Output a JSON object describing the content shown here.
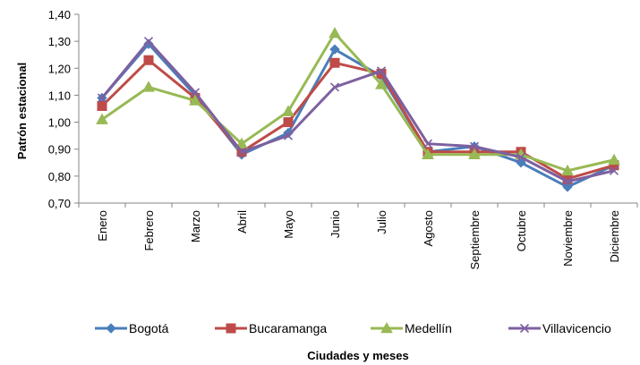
{
  "chart_data": {
    "type": "line",
    "title": "",
    "xlabel": "Ciudades y meses",
    "ylabel": "Patrón estacional",
    "categories": [
      "Enero",
      "Febrero",
      "Marzo",
      "Abril",
      "Mayo",
      "Junio",
      "Julio",
      "Agosto",
      "Septiembre",
      "Octubre",
      "Noviembre",
      "Diciembre"
    ],
    "ylim": [
      0.7,
      1.4
    ],
    "yticks": [
      0.7,
      0.8,
      0.9,
      1.0,
      1.1,
      1.2,
      1.3,
      1.4
    ],
    "ytick_labels": [
      "0,70",
      "0,80",
      "0,90",
      "1,00",
      "1,10",
      "1,20",
      "1,30",
      "1,40"
    ],
    "grid": false,
    "legend_position": "bottom",
    "series": [
      {
        "name": "Bogotá",
        "color": "#4a7ebb",
        "marker": "diamond",
        "values": [
          1.09,
          1.29,
          1.1,
          0.88,
          0.96,
          1.27,
          1.17,
          0.89,
          0.91,
          0.85,
          0.76,
          0.84
        ]
      },
      {
        "name": "Bucaramanga",
        "color": "#be4b48",
        "marker": "square",
        "values": [
          1.06,
          1.23,
          1.09,
          0.89,
          1.0,
          1.22,
          1.18,
          0.89,
          0.89,
          0.89,
          0.79,
          0.84
        ]
      },
      {
        "name": "Medellín",
        "color": "#98b954",
        "marker": "triangle",
        "values": [
          1.01,
          1.13,
          1.08,
          0.92,
          1.04,
          1.33,
          1.14,
          0.88,
          0.88,
          0.88,
          0.82,
          0.86
        ]
      },
      {
        "name": "Villavicencio",
        "color": "#7d60a0",
        "marker": "x",
        "values": [
          1.09,
          1.3,
          1.11,
          0.89,
          0.95,
          1.13,
          1.19,
          0.92,
          0.91,
          0.87,
          0.78,
          0.82
        ]
      }
    ]
  }
}
